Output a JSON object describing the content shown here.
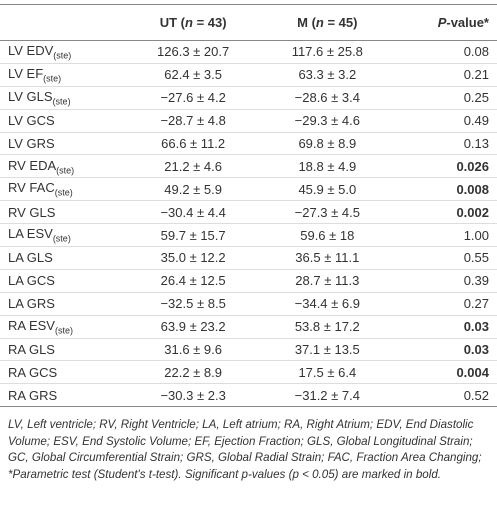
{
  "table": {
    "header": [
      {
        "text": ""
      },
      {
        "pre": "UT (",
        "it": "n",
        "post": " = 43)"
      },
      {
        "pre": "M (",
        "it": "n",
        "post": " = 45)"
      },
      {
        "pre": "",
        "it": "P",
        "post": "-value*"
      }
    ],
    "rows": [
      {
        "label": "LV EDV",
        "sub": "(ste)",
        "ut": "126.3 ± 20.7",
        "m": "117.6 ± 25.8",
        "p": "0.08"
      },
      {
        "label": "LV EF",
        "sub": "(ste)",
        "ut": "62.4 ± 3.5",
        "m": "63.3 ± 3.2",
        "p": "0.21"
      },
      {
        "label": "LV GLS",
        "sub": "(ste)",
        "ut": "−27.6 ± 4.2",
        "m": "−28.6 ± 3.4",
        "p": "0.25"
      },
      {
        "label": "LV GCS",
        "ut": "−28.7 ± 4.8",
        "m": "−29.3 ± 4.6",
        "p": "0.49"
      },
      {
        "label": "LV GRS",
        "ut": "66.6 ± 11.2",
        "m": "69.8 ± 8.9",
        "p": "0.13"
      },
      {
        "label": "RV EDA",
        "sub": "(ste)",
        "ut": "21.2 ± 4.6",
        "m": "18.8 ± 4.9",
        "p": "0.026",
        "p_bold": true
      },
      {
        "label": "RV FAC",
        "sub": "(ste)",
        "ut": "49.2 ± 5.9",
        "m": "45.9 ± 5.0",
        "p": "0.008",
        "p_bold": true
      },
      {
        "label": "RV GLS",
        "ut": "−30.4 ± 4.4",
        "m": "−27.3 ± 4.5",
        "p": "0.002",
        "p_bold": true
      },
      {
        "label": "LA ESV",
        "sub": "(ste)",
        "ut": "59.7 ± 15.7",
        "m": "59.6 ± 18",
        "p": "1.00"
      },
      {
        "label": "LA GLS",
        "ut": "35.0 ± 12.2",
        "m": "36.5 ± 11.1",
        "p": "0.55"
      },
      {
        "label": "LA GCS",
        "ut": "26.4 ± 12.5",
        "m": "28.7 ± 11.3",
        "p": "0.39"
      },
      {
        "label": "LA GRS",
        "ut": "−32.5 ± 8.5",
        "m": "−34.4 ± 6.9",
        "p": "0.27"
      },
      {
        "label": "RA ESV",
        "sub": "(ste)",
        "ut": "63.9 ± 23.2",
        "m": "53.8 ± 17.2",
        "p": "0.03",
        "p_bold": true
      },
      {
        "label": "RA GLS",
        "ut": "31.6 ± 9.6",
        "m": "37.1 ± 13.5",
        "p": "0.03",
        "p_bold": true
      },
      {
        "label": "RA GCS",
        "ut": "22.2 ± 8.9",
        "m": "17.5 ± 6.4",
        "p": "0.004",
        "p_bold": true
      },
      {
        "label": "RA GRS",
        "ut": "−30.3 ± 2.3",
        "m": "−31.2 ± 7.4",
        "p": "0.52"
      }
    ],
    "footnote": "LV, Left ventricle; RV, Right Ventricle; LA, Left atrium; RA, Right Atrium; EDV, End Diastolic Volume; ESV, End Systolic Volume; EF, Ejection Fraction; GLS, Global Longitudinal Strain; GC, Global Circumferential Strain; GRS, Global Radial Strain; FAC, Fraction Area Changing; *Parametric test (Student's t-test). Significant p-values (p < 0.05) are marked in bold."
  }
}
